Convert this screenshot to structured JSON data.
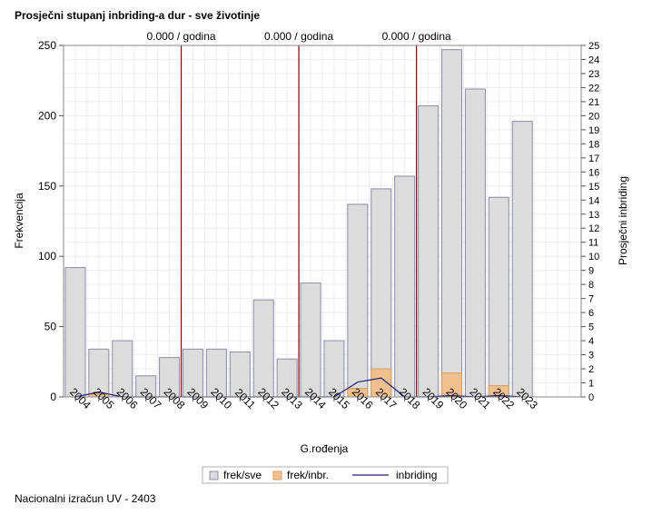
{
  "title": "Prosječni stupanj inbriding-a dur - sve životinje",
  "footer": "Nacionalni izračun UV - 2403",
  "chart_data": {
    "type": "bar",
    "categories": [
      "2004",
      "2005",
      "2006",
      "2007",
      "2008",
      "2009",
      "2010",
      "2011",
      "2012",
      "2013",
      "2014",
      "2015",
      "2016",
      "2017",
      "2018",
      "2019",
      "2020",
      "2021",
      "2022",
      "2023"
    ],
    "series": [
      {
        "name": "frek/sve",
        "type": "bar",
        "axis": "left",
        "color": "#dcdcdc",
        "values": [
          92,
          34,
          40,
          15,
          28,
          34,
          34,
          32,
          69,
          27,
          81,
          40,
          137,
          148,
          157,
          207,
          247,
          219,
          142,
          196
        ]
      },
      {
        "name": "frek/inbr.",
        "type": "bar",
        "axis": "left",
        "color": "#f2c08e",
        "values": [
          0,
          2,
          0,
          0,
          0,
          0,
          0,
          0,
          0,
          0,
          0,
          0,
          6,
          20,
          0,
          0,
          17,
          0,
          8,
          0
        ]
      },
      {
        "name": "inbriding",
        "type": "line",
        "axis": "right",
        "color": "#1f1f7a",
        "values": [
          0,
          0.35,
          0,
          0,
          0,
          0,
          0,
          0,
          0,
          0,
          0,
          0,
          1.05,
          1.35,
          0,
          0,
          0.1,
          0,
          0.1,
          0
        ]
      }
    ],
    "xlabel": "G.rođenja",
    "ylabel": "Frekvencija",
    "y2label": "Prosječni inbriding",
    "ylim": [
      0,
      250
    ],
    "yticks": [
      0,
      50,
      100,
      150,
      200,
      250
    ],
    "y2lim": [
      0,
      25
    ],
    "y2ticks": [
      0,
      1,
      2,
      3,
      4,
      5,
      6,
      7,
      8,
      9,
      10,
      11,
      12,
      13,
      14,
      15,
      16,
      17,
      18,
      19,
      20,
      21,
      22,
      23,
      24,
      25
    ],
    "xlim": [
      "2003.5",
      "2025.5"
    ],
    "grid": true,
    "legend": "bottom",
    "reference_lines": [
      {
        "x": "2008.5",
        "label": "0.000 / godina",
        "color": "#8b0000"
      },
      {
        "x": "2013.5",
        "label": "0.000 / godina",
        "color": "#8b0000"
      },
      {
        "x": "2018.5",
        "label": "0.000 / godina",
        "color": "#8b0000"
      }
    ]
  }
}
